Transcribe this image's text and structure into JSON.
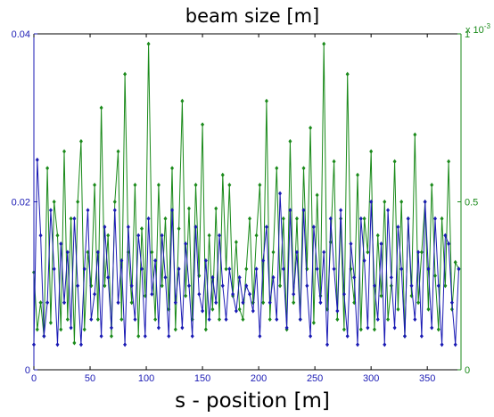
{
  "chart_data": {
    "type": "line",
    "title": "beam size [m]",
    "xlabel": "s - position [m]",
    "ylabel": "",
    "xlim": [
      0,
      380
    ],
    "xticks": [
      0,
      50,
      100,
      150,
      200,
      250,
      300,
      350
    ],
    "grid": false,
    "legend": "none",
    "left_axis": {
      "ylim": [
        0,
        0.04
      ],
      "yticks": [
        0,
        0.02,
        0.04
      ],
      "ytick_labels": [
        "0",
        "0.02",
        "0.04"
      ],
      "color": "#1a1ab4"
    },
    "right_axis": {
      "ylim": [
        0,
        1
      ],
      "yticks": [
        0,
        0.5,
        1
      ],
      "ytick_labels": [
        "0",
        "0.5",
        "1"
      ],
      "exponent_label": "x 10",
      "exponent_power": "-3",
      "color": "#1a8a1a"
    },
    "series": [
      {
        "axis": "left",
        "color": "#1a1ab4",
        "x": [
          0,
          3,
          6,
          9,
          12,
          15,
          18,
          21,
          24,
          27,
          30,
          33,
          36,
          39,
          42,
          45,
          48,
          51,
          54,
          57,
          60,
          63,
          66,
          69,
          72,
          75,
          78,
          81,
          84,
          87,
          90,
          93,
          96,
          99,
          102,
          105,
          108,
          111,
          114,
          117,
          120,
          123,
          126,
          129,
          132,
          135,
          138,
          141,
          144,
          147,
          150,
          153,
          156,
          159,
          162,
          165,
          168,
          171,
          174,
          177,
          180,
          183,
          186,
          189,
          192,
          195,
          198,
          201,
          204,
          207,
          210,
          213,
          216,
          219,
          222,
          225,
          228,
          231,
          234,
          237,
          240,
          243,
          246,
          249,
          252,
          255,
          258,
          261,
          264,
          267,
          270,
          273,
          276,
          279,
          282,
          285,
          288,
          291,
          294,
          297,
          300,
          303,
          306,
          309,
          312,
          315,
          318,
          321,
          324,
          327,
          330,
          333,
          336,
          339,
          342,
          345,
          348,
          351,
          354,
          357,
          360,
          363,
          366,
          369,
          372,
          375,
          378
        ],
        "y": [
          0.003,
          0.025,
          0.016,
          0.004,
          0.008,
          0.019,
          0.012,
          0.003,
          0.015,
          0.008,
          0.014,
          0.005,
          0.018,
          0.01,
          0.003,
          0.012,
          0.019,
          0.006,
          0.009,
          0.014,
          0.004,
          0.017,
          0.011,
          0.005,
          0.019,
          0.008,
          0.013,
          0.003,
          0.017,
          0.01,
          0.006,
          0.016,
          0.012,
          0.004,
          0.018,
          0.009,
          0.013,
          0.005,
          0.016,
          0.011,
          0.004,
          0.019,
          0.008,
          0.012,
          0.005,
          0.015,
          0.01,
          0.004,
          0.017,
          0.009,
          0.007,
          0.013,
          0.006,
          0.011,
          0.008,
          0.016,
          0.01,
          0.006,
          0.012,
          0.009,
          0.007,
          0.011,
          0.008,
          0.01,
          0.009,
          0.007,
          0.012,
          0.004,
          0.013,
          0.017,
          0.008,
          0.011,
          0.006,
          0.021,
          0.012,
          0.005,
          0.019,
          0.009,
          0.014,
          0.006,
          0.019,
          0.01,
          0.004,
          0.017,
          0.012,
          0.008,
          0.014,
          0.003,
          0.018,
          0.012,
          0.007,
          0.019,
          0.009,
          0.004,
          0.015,
          0.011,
          0.003,
          0.018,
          0.013,
          0.005,
          0.02,
          0.01,
          0.006,
          0.015,
          0.003,
          0.019,
          0.011,
          0.005,
          0.017,
          0.012,
          0.004,
          0.018,
          0.01,
          0.006,
          0.014,
          0.004,
          0.02,
          0.012,
          0.005,
          0.018,
          0.01,
          0.003,
          0.016,
          0.015,
          0.008,
          0.003,
          0.012
        ]
      },
      {
        "axis": "right",
        "color": "#1a8a1a",
        "x": [
          0,
          3,
          6,
          9,
          12,
          15,
          18,
          21,
          24,
          27,
          30,
          33,
          36,
          39,
          42,
          45,
          48,
          51,
          54,
          57,
          60,
          63,
          66,
          69,
          72,
          75,
          78,
          81,
          84,
          87,
          90,
          93,
          96,
          99,
          102,
          105,
          108,
          111,
          114,
          117,
          120,
          123,
          126,
          129,
          132,
          135,
          138,
          141,
          144,
          147,
          150,
          153,
          156,
          159,
          162,
          165,
          168,
          171,
          174,
          177,
          180,
          183,
          186,
          189,
          192,
          195,
          198,
          201,
          204,
          207,
          210,
          213,
          216,
          219,
          222,
          225,
          228,
          231,
          234,
          237,
          240,
          243,
          246,
          249,
          252,
          255,
          258,
          261,
          264,
          267,
          270,
          273,
          276,
          279,
          282,
          285,
          288,
          291,
          294,
          297,
          300,
          303,
          306,
          309,
          312,
          315,
          318,
          321,
          324,
          327,
          330,
          333,
          336,
          339,
          342,
          345,
          348,
          351,
          354,
          357,
          360,
          363,
          366,
          369,
          372,
          375,
          378
        ],
        "y": [
          0.29,
          0.12,
          0.2,
          0.1,
          0.6,
          0.14,
          0.5,
          0.4,
          0.12,
          0.65,
          0.15,
          0.45,
          0.08,
          0.5,
          0.68,
          0.12,
          0.35,
          0.25,
          0.55,
          0.15,
          0.78,
          0.25,
          0.4,
          0.1,
          0.5,
          0.65,
          0.15,
          0.88,
          0.35,
          0.2,
          0.55,
          0.1,
          0.42,
          0.22,
          0.97,
          0.35,
          0.15,
          0.55,
          0.25,
          0.45,
          0.18,
          0.6,
          0.12,
          0.42,
          0.8,
          0.22,
          0.48,
          0.15,
          0.55,
          0.28,
          0.73,
          0.12,
          0.4,
          0.18,
          0.48,
          0.15,
          0.58,
          0.3,
          0.55,
          0.22,
          0.38,
          0.18,
          0.15,
          0.3,
          0.45,
          0.2,
          0.4,
          0.55,
          0.2,
          0.8,
          0.15,
          0.35,
          0.6,
          0.25,
          0.45,
          0.12,
          0.68,
          0.2,
          0.45,
          0.15,
          0.6,
          0.3,
          0.72,
          0.14,
          0.52,
          0.22,
          0.97,
          0.18,
          0.38,
          0.62,
          0.15,
          0.45,
          0.12,
          0.88,
          0.3,
          0.2,
          0.58,
          0.12,
          0.45,
          0.35,
          0.65,
          0.12,
          0.4,
          0.22,
          0.5,
          0.15,
          0.25,
          0.62,
          0.18,
          0.5,
          0.1,
          0.45,
          0.22,
          0.7,
          0.2,
          0.35,
          0.5,
          0.18,
          0.55,
          0.28,
          0.12,
          0.45,
          0.25,
          0.62,
          0.18,
          0.32,
          0.3
        ]
      }
    ]
  }
}
